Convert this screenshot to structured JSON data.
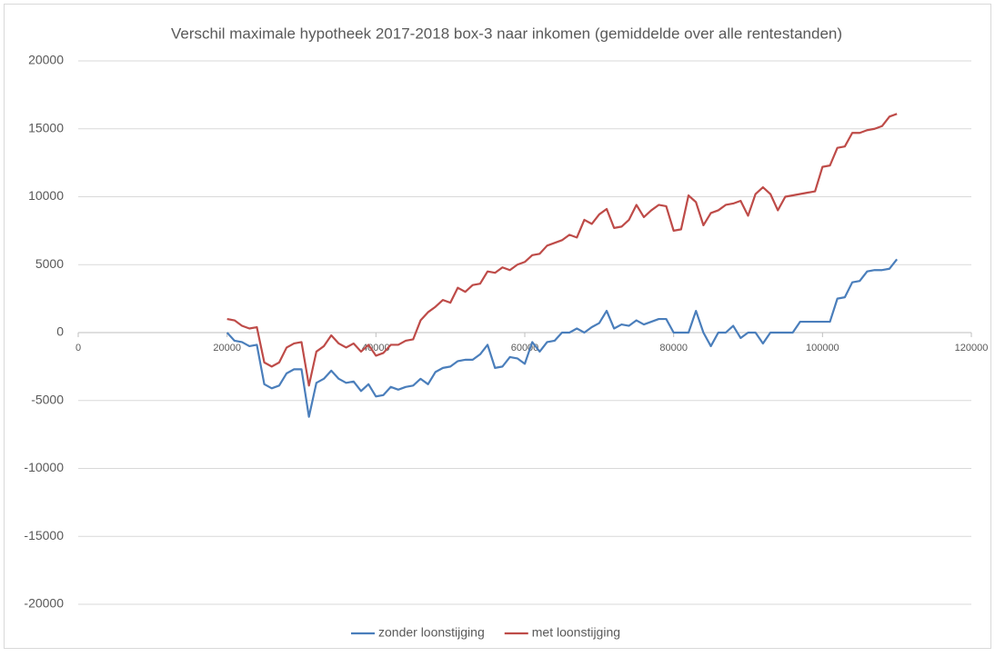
{
  "chart_data": {
    "type": "line",
    "title": "Verschil maximale hypotheek 2017-2018 box-3 naar inkomen (gemiddelde over alle rentestanden)",
    "x": [
      20000,
      21000,
      22000,
      23000,
      24000,
      25000,
      26000,
      27000,
      28000,
      29000,
      30000,
      31000,
      32000,
      33000,
      34000,
      35000,
      36000,
      37000,
      38000,
      39000,
      40000,
      41000,
      42000,
      43000,
      44000,
      45000,
      46000,
      47000,
      48000,
      49000,
      50000,
      51000,
      52000,
      53000,
      54000,
      55000,
      56000,
      57000,
      58000,
      59000,
      60000,
      61000,
      62000,
      63000,
      64000,
      65000,
      66000,
      67000,
      68000,
      69000,
      70000,
      71000,
      72000,
      73000,
      74000,
      75000,
      76000,
      77000,
      78000,
      79000,
      80000,
      81000,
      82000,
      83000,
      84000,
      85000,
      86000,
      87000,
      88000,
      89000,
      90000,
      91000,
      92000,
      93000,
      94000,
      95000,
      96000,
      97000,
      98000,
      99000,
      100000,
      101000,
      102000,
      103000,
      104000,
      105000,
      106000,
      107000,
      108000,
      109000,
      110000
    ],
    "series": [
      {
        "name": "zonder loonstijging",
        "color": "#4a7ebb",
        "values": [
          0,
          -600,
          -700,
          -1000,
          -900,
          -3800,
          -4100,
          -3900,
          -3000,
          -2700,
          -2700,
          -6200,
          -3700,
          -3400,
          -2800,
          -3400,
          -3700,
          -3600,
          -4300,
          -3800,
          -4700,
          -4600,
          -4000,
          -4200,
          -4000,
          -3900,
          -3400,
          -3800,
          -2900,
          -2600,
          -2500,
          -2100,
          -2000,
          -2000,
          -1600,
          -900,
          -2600,
          -2500,
          -1800,
          -1900,
          -2300,
          -700,
          -1400,
          -700,
          -600,
          0,
          0,
          300,
          0,
          400,
          700,
          1600,
          300,
          600,
          500,
          900,
          600,
          800,
          1000,
          1000,
          0,
          0,
          0,
          1600,
          0,
          -1000,
          0,
          0,
          500,
          -400,
          0,
          0,
          -800,
          0,
          0,
          0,
          0,
          800,
          800,
          800,
          800,
          800,
          2500,
          2600,
          3700,
          3800,
          4500,
          4600,
          4600,
          4700,
          5400
        ]
      },
      {
        "name": "met loonstijging",
        "color": "#be4b48",
        "values": [
          1000,
          900,
          500,
          300,
          400,
          -2200,
          -2500,
          -2200,
          -1100,
          -800,
          -700,
          -3900,
          -1400,
          -1000,
          -200,
          -800,
          -1100,
          -800,
          -1400,
          -900,
          -1700,
          -1500,
          -900,
          -900,
          -600,
          -500,
          900,
          1500,
          1900,
          2400,
          2200,
          3300,
          3000,
          3500,
          3600,
          4500,
          4400,
          4800,
          4600,
          5000,
          5200,
          5700,
          5800,
          6400,
          6600,
          6800,
          7200,
          7000,
          8300,
          8000,
          8700,
          9100,
          7700,
          7800,
          8300,
          9400,
          8500,
          9000,
          9400,
          9300,
          7500,
          7600,
          10100,
          9600,
          7900,
          8800,
          9000,
          9400,
          9500,
          9700,
          8600,
          10200,
          10700,
          10200,
          9000,
          10000,
          10100,
          10200,
          10300,
          10400,
          12200,
          12300,
          13600,
          13700,
          14700,
          14700,
          14900,
          15000,
          15200,
          15900,
          16100
        ]
      }
    ],
    "xlim": [
      0,
      120000
    ],
    "xticks": [
      0,
      20000,
      40000,
      60000,
      80000,
      100000,
      120000
    ],
    "ylim": [
      -20000,
      20000
    ],
    "yticks": [
      -20000,
      -15000,
      -10000,
      -5000,
      0,
      5000,
      10000,
      15000,
      20000
    ],
    "grid": true,
    "legend": "bottom"
  }
}
